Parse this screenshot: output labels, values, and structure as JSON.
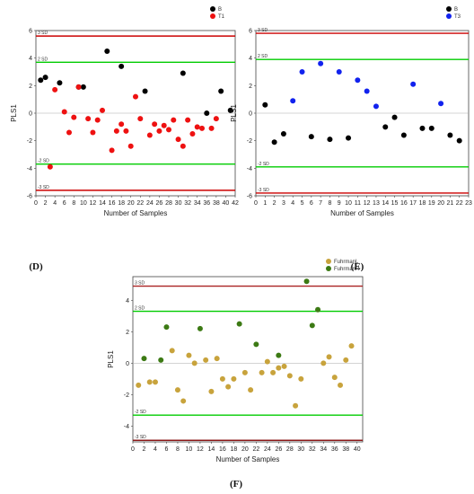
{
  "chart_data": [
    {
      "type": "scatter",
      "panel_label": "(D)",
      "xlabel": "Number of Samples",
      "ylabel": "PLS1",
      "xlim": [
        0,
        42
      ],
      "ylim": [
        -6,
        6
      ],
      "xticks": [
        0,
        2,
        4,
        6,
        8,
        10,
        12,
        14,
        16,
        18,
        20,
        22,
        24,
        26,
        28,
        30,
        32,
        34,
        36,
        38,
        40,
        42
      ],
      "yticks": [
        -6,
        -4,
        -2,
        0,
        2,
        4,
        6
      ],
      "reference_lines": [
        {
          "label": "3 SD",
          "y": 5.6,
          "color": "#cc0000"
        },
        {
          "label": "2 SD",
          "y": 3.7,
          "color": "#00cc00"
        },
        {
          "label": "-2 SD",
          "y": -3.7,
          "color": "#00cc00"
        },
        {
          "label": "-3 SD",
          "y": -5.6,
          "color": "#cc0000"
        }
      ],
      "series": [
        {
          "name": "B",
          "color": "#000000",
          "x": [
            1,
            2,
            5,
            9,
            10,
            15,
            18,
            23,
            31,
            36,
            39,
            41
          ],
          "y": [
            2.4,
            2.6,
            2.2,
            1.9,
            1.9,
            4.5,
            3.4,
            1.6,
            2.9,
            0.0,
            1.6,
            0.2
          ]
        },
        {
          "name": "T1",
          "color": "#ee1111",
          "x": [
            3,
            4,
            6,
            7,
            8,
            9,
            11,
            12,
            13,
            14,
            16,
            17,
            18,
            19,
            20,
            21,
            22,
            24,
            25,
            26,
            27,
            28,
            29,
            30,
            31,
            32,
            33,
            34,
            35,
            37,
            38
          ],
          "y": [
            -3.9,
            1.7,
            0.1,
            -1.4,
            -0.3,
            1.9,
            -0.4,
            -1.4,
            -0.5,
            0.2,
            -2.7,
            -1.3,
            -0.8,
            -1.3,
            -2.4,
            1.2,
            -0.4,
            -1.6,
            -0.8,
            -1.3,
            -0.9,
            -1.2,
            -0.5,
            -1.9,
            -2.4,
            -0.5,
            -1.5,
            -1.0,
            -1.1,
            -1.1,
            -0.4
          ]
        }
      ]
    },
    {
      "type": "scatter",
      "panel_label": "(E)",
      "xlabel": "Number of Samples",
      "ylabel": "PLS1",
      "xlim": [
        0,
        23
      ],
      "ylim": [
        -6,
        6
      ],
      "xticks": [
        0,
        1,
        2,
        3,
        4,
        5,
        6,
        7,
        8,
        9,
        10,
        11,
        12,
        13,
        14,
        15,
        16,
        17,
        18,
        19,
        20,
        21,
        22,
        23
      ],
      "yticks": [
        -6,
        -4,
        -2,
        0,
        2,
        4,
        6
      ],
      "reference_lines": [
        {
          "label": "3 SD",
          "y": 5.8,
          "color": "#cc0000"
        },
        {
          "label": "2 SD",
          "y": 3.9,
          "color": "#00cc00"
        },
        {
          "label": "-2 SD",
          "y": -3.9,
          "color": "#00cc00"
        },
        {
          "label": "-3 SD",
          "y": -5.8,
          "color": "#cc0000"
        }
      ],
      "series": [
        {
          "name": "B",
          "color": "#000000",
          "x": [
            1,
            2,
            3,
            6,
            8,
            10,
            14,
            15,
            16,
            18,
            19,
            21,
            22
          ],
          "y": [
            0.6,
            -2.1,
            -1.5,
            -1.7,
            -1.9,
            -1.8,
            -1.0,
            -0.3,
            -1.6,
            -1.1,
            -1.1,
            -1.6,
            -2.0
          ]
        },
        {
          "name": "T3",
          "color": "#1122ee",
          "x": [
            4,
            5,
            7,
            9,
            11,
            12,
            13,
            17,
            20
          ],
          "y": [
            0.9,
            3.0,
            3.6,
            3.0,
            2.4,
            1.6,
            0.5,
            2.1,
            0.7
          ]
        }
      ]
    },
    {
      "type": "scatter",
      "panel_label": "(F)",
      "xlabel": "Number of Samples",
      "ylabel": "PLS1",
      "xlim": [
        0,
        41
      ],
      "ylim": [
        -5,
        5.5
      ],
      "xticks": [
        0,
        2,
        4,
        6,
        8,
        10,
        12,
        14,
        16,
        18,
        20,
        22,
        24,
        26,
        28,
        30,
        32,
        34,
        36,
        38,
        40
      ],
      "yticks": [
        -4,
        -2,
        0,
        2,
        4
      ],
      "reference_lines": [
        {
          "label": "3 SD",
          "y": 4.9,
          "color": "#aa2222"
        },
        {
          "label": "2 SD",
          "y": 3.3,
          "color": "#00cc00"
        },
        {
          "label": "-2 SD",
          "y": -3.3,
          "color": "#00cc00"
        },
        {
          "label": "-3 SD",
          "y": -4.9,
          "color": "#8b1a1a"
        }
      ],
      "series": [
        {
          "name": "FuhrmanL",
          "color": "#c8a33c",
          "x": [
            1,
            3,
            4,
            7,
            8,
            9,
            10,
            11,
            13,
            14,
            15,
            16,
            17,
            18,
            20,
            21,
            23,
            24,
            25,
            26,
            27,
            28,
            29,
            30,
            34,
            35,
            36,
            37,
            38,
            39
          ],
          "y": [
            -1.4,
            -1.2,
            -1.2,
            0.8,
            -1.7,
            -2.4,
            0.5,
            0.0,
            0.2,
            -1.8,
            0.3,
            -1.0,
            -1.5,
            -1.0,
            -0.6,
            -1.7,
            -0.6,
            0.1,
            -0.6,
            -0.3,
            -0.2,
            -0.8,
            -2.7,
            -1.0,
            0.0,
            0.4,
            -0.9,
            -1.4,
            0.2,
            1.1
          ]
        },
        {
          "name": "FuhrmanH",
          "color": "#3c7a14",
          "x": [
            2,
            5,
            6,
            12,
            19,
            22,
            26,
            31,
            32,
            33
          ],
          "y": [
            0.3,
            0.2,
            2.3,
            2.2,
            2.5,
            1.2,
            0.5,
            5.2,
            2.4,
            3.4
          ]
        }
      ]
    }
  ]
}
